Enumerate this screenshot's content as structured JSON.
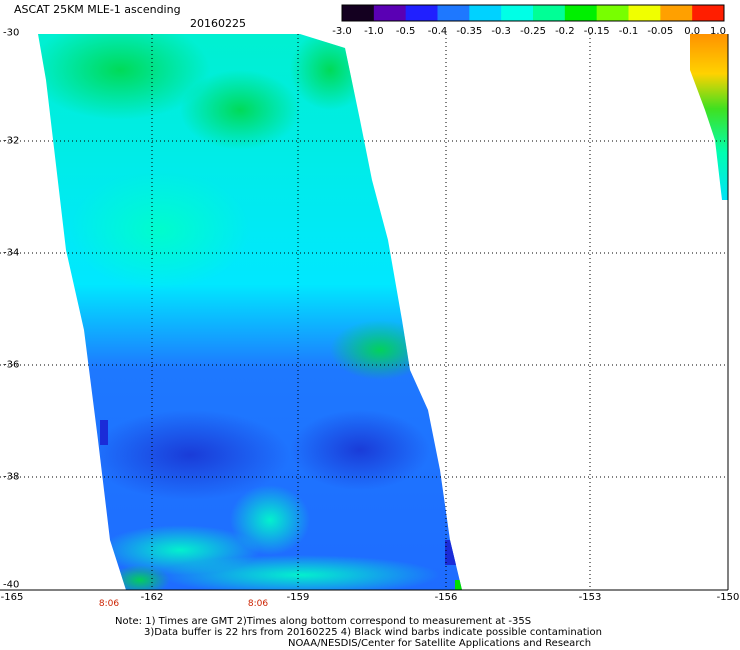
{
  "title": "ASCAT 25KM MLE-1 ascending",
  "date": "20160225",
  "colorbar": {
    "ticks": [
      "-3.0",
      "-1.0",
      "-0.5",
      "-0.4",
      "-0.35",
      "-0.3",
      "-0.25",
      "-0.2",
      "-0.15",
      "-0.1",
      "-0.05",
      "0.0",
      "1.0"
    ],
    "colors": [
      "#140020",
      "#5a00b4",
      "#2020ff",
      "#1e78ff",
      "#00d2ff",
      "#00ffe6",
      "#00ff96",
      "#00f000",
      "#78ff00",
      "#f0ff00",
      "#ffa000",
      "#ff1e00"
    ]
  },
  "lat_labels": [
    "-30",
    "-32",
    "-34",
    "-36",
    "-38",
    "-40"
  ],
  "lon_labels": [
    "-165",
    "-162",
    "-159",
    "-156",
    "-153",
    "-150"
  ],
  "time_labels": [
    "8:06",
    "8:06"
  ],
  "notes": {
    "line1": "Note: 1) Times are GMT 2)Times along bottom correspond to measurement at -35S",
    "line2": "3)Data buffer is 22 hrs from 20160225 4) Black wind barbs indicate possible contamination",
    "line3": "NOAA/NESDIS/Center for Satellite Applications and Research"
  }
}
